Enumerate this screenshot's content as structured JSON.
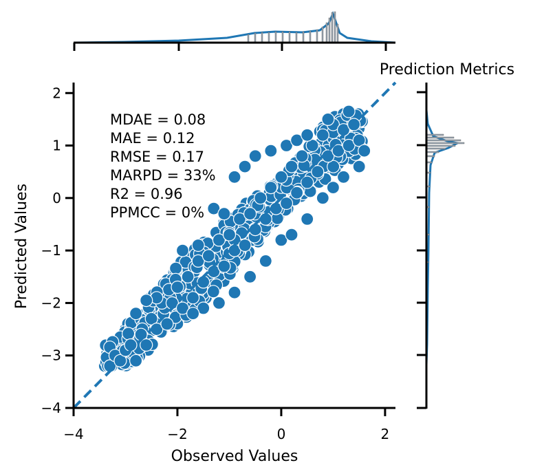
{
  "chart_data": {
    "type": "scatter",
    "title": "Prediction Metrics",
    "xlabel": "Observed Values",
    "ylabel": "Predicted Values",
    "xlim": [
      -4,
      2.2
    ],
    "ylim": [
      -4,
      2.2
    ],
    "xticks": [
      -4,
      -2,
      0,
      2
    ],
    "yticks": [
      -4,
      -3,
      -2,
      -1,
      0,
      1,
      2
    ],
    "tick_labels": {
      "x": [
        "−4",
        "−2",
        "0",
        "2"
      ],
      "y": [
        "−4",
        "−3",
        "−2",
        "−1",
        "0",
        "1",
        "2"
      ]
    },
    "identity_line": {
      "style": "dashed",
      "from": [
        -4,
        -4
      ],
      "to": [
        2.2,
        2.2
      ]
    },
    "annotations": [
      "MDAE = 0.08",
      "MAE = 0.12",
      "RMSE = 0.17",
      "MARPD = 33%",
      "R2 = 0.96",
      "PPMCC = 0%"
    ],
    "series_color": "#1f77b4",
    "points": [
      [
        -3.3,
        -3.2
      ],
      [
        -3.2,
        -3.0
      ],
      [
        -3.1,
        -3.1
      ],
      [
        -3.0,
        -2.9
      ],
      [
        -2.9,
        -2.8
      ],
      [
        -2.8,
        -3.1
      ],
      [
        -2.7,
        -2.6
      ],
      [
        -2.6,
        -2.8
      ],
      [
        -2.5,
        -2.3
      ],
      [
        -2.4,
        -2.5
      ],
      [
        -2.3,
        -2.0
      ],
      [
        -2.2,
        -2.4
      ],
      [
        -2.1,
        -2.0
      ],
      [
        -2.0,
        -1.7
      ],
      [
        -1.9,
        -2.1
      ],
      [
        -1.8,
        -1.5
      ],
      [
        -1.7,
        -1.9
      ],
      [
        -1.6,
        -1.2
      ],
      [
        -1.5,
        -1.6
      ],
      [
        -1.4,
        -1.1
      ],
      [
        -1.3,
        -1.4
      ],
      [
        -1.2,
        -0.8
      ],
      [
        -1.1,
        -1.3
      ],
      [
        -1.0,
        -0.7
      ],
      [
        -0.9,
        -1.0
      ],
      [
        -0.8,
        -0.4
      ],
      [
        -0.7,
        -0.9
      ],
      [
        -0.6,
        -0.3
      ],
      [
        -0.5,
        -0.6
      ],
      [
        -0.4,
        0.0
      ],
      [
        -0.3,
        -0.4
      ],
      [
        -0.2,
        0.2
      ],
      [
        -0.1,
        -0.2
      ],
      [
        0.0,
        0.4
      ],
      [
        0.1,
        -0.1
      ],
      [
        0.2,
        0.6
      ],
      [
        0.3,
        0.1
      ],
      [
        0.4,
        0.8
      ],
      [
        0.5,
        0.3
      ],
      [
        0.6,
        1.0
      ],
      [
        0.7,
        0.5
      ],
      [
        0.8,
        1.2
      ],
      [
        0.9,
        0.8
      ],
      [
        1.0,
        1.4
      ],
      [
        1.1,
        0.9
      ],
      [
        1.2,
        1.3
      ],
      [
        1.3,
        1.0
      ],
      [
        1.4,
        1.4
      ],
      [
        1.5,
        1.1
      ],
      [
        -2.8,
        -2.2
      ],
      [
        -2.4,
        -1.9
      ],
      [
        -2.6,
        -1.95
      ],
      [
        -1.9,
        -1.0
      ],
      [
        -1.6,
        -0.9
      ],
      [
        -1.3,
        -0.2
      ],
      [
        -1.1,
        -0.3
      ],
      [
        -0.9,
        0.4
      ],
      [
        -0.7,
        0.6
      ],
      [
        -0.5,
        0.8
      ],
      [
        -0.2,
        0.9
      ],
      [
        0.1,
        1.0
      ],
      [
        0.3,
        1.1
      ],
      [
        0.5,
        1.2
      ],
      [
        0.9,
        1.5
      ],
      [
        1.3,
        1.65
      ],
      [
        -1.2,
        -2.0
      ],
      [
        -0.9,
        -1.8
      ],
      [
        -0.6,
        -1.5
      ],
      [
        -0.3,
        -1.2
      ],
      [
        0.0,
        -0.8
      ],
      [
        0.2,
        -0.7
      ],
      [
        0.5,
        -0.4
      ],
      [
        0.8,
        0.0
      ],
      [
        1.0,
        0.2
      ],
      [
        1.2,
        0.4
      ],
      [
        1.5,
        0.6
      ],
      [
        1.6,
        0.9
      ],
      [
        -1.5,
        -2.1
      ],
      [
        -1.7,
        -2.2
      ]
    ]
  }
}
